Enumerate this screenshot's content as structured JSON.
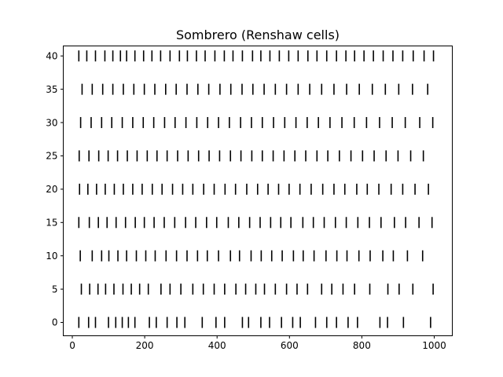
{
  "chart_data": {
    "type": "scatter",
    "marker": "vertical-line",
    "title": "Sombrero (Renshaw cells)",
    "xlabel": "",
    "ylabel": "",
    "xlim": [
      -25,
      1050
    ],
    "ylim": [
      -2,
      41.5
    ],
    "x_ticks": [
      0,
      200,
      400,
      600,
      800,
      1000
    ],
    "y_ticks": [
      0,
      5,
      10,
      15,
      20,
      25,
      30,
      35,
      40
    ],
    "grid": false,
    "legend": "none",
    "n_cells": 41,
    "time_range": [
      15,
      1000
    ],
    "series": [
      {
        "values": [
          [
            18,
            0
          ],
          [
            45,
            0
          ],
          [
            64,
            0
          ],
          [
            100,
            0
          ],
          [
            120,
            0
          ],
          [
            138,
            0
          ],
          [
            155,
            0
          ],
          [
            173,
            0
          ],
          [
            213,
            0
          ],
          [
            232,
            0
          ],
          [
            262,
            0
          ],
          [
            289,
            0
          ],
          [
            311,
            0
          ],
          [
            359,
            0
          ],
          [
            397,
            0
          ],
          [
            421,
            0
          ],
          [
            470,
            0
          ],
          [
            487,
            0
          ],
          [
            521,
            0
          ],
          [
            545,
            0
          ],
          [
            578,
            0
          ],
          [
            609,
            0
          ],
          [
            630,
            0
          ],
          [
            672,
            0
          ],
          [
            703,
            0
          ],
          [
            730,
            0
          ],
          [
            762,
            0
          ],
          [
            788,
            0
          ],
          [
            850,
            0
          ],
          [
            871,
            0
          ],
          [
            915,
            0
          ],
          [
            990,
            0
          ],
          [
            25,
            5
          ],
          [
            48,
            5
          ],
          [
            71,
            5
          ],
          [
            92,
            5
          ],
          [
            115,
            5
          ],
          [
            140,
            5
          ],
          [
            163,
            5
          ],
          [
            186,
            5
          ],
          [
            210,
            5
          ],
          [
            245,
            5
          ],
          [
            270,
            5
          ],
          [
            300,
            5
          ],
          [
            333,
            5
          ],
          [
            362,
            5
          ],
          [
            392,
            5
          ],
          [
            421,
            5
          ],
          [
            452,
            5
          ],
          [
            479,
            5
          ],
          [
            507,
            5
          ],
          [
            531,
            5
          ],
          [
            561,
            5
          ],
          [
            592,
            5
          ],
          [
            621,
            5
          ],
          [
            650,
            5
          ],
          [
            689,
            5
          ],
          [
            717,
            5
          ],
          [
            748,
            5
          ],
          [
            780,
            5
          ],
          [
            822,
            5
          ],
          [
            872,
            5
          ],
          [
            903,
            5
          ],
          [
            941,
            5
          ],
          [
            997,
            5
          ],
          [
            22,
            10
          ],
          [
            55,
            10
          ],
          [
            81,
            10
          ],
          [
            101,
            10
          ],
          [
            126,
            10
          ],
          [
            150,
            10
          ],
          [
            177,
            10
          ],
          [
            203,
            10
          ],
          [
            229,
            10
          ],
          [
            259,
            10
          ],
          [
            288,
            10
          ],
          [
            317,
            10
          ],
          [
            346,
            10
          ],
          [
            373,
            10
          ],
          [
            404,
            10
          ],
          [
            437,
            10
          ],
          [
            462,
            10
          ],
          [
            494,
            10
          ],
          [
            522,
            10
          ],
          [
            551,
            10
          ],
          [
            580,
            10
          ],
          [
            611,
            10
          ],
          [
            638,
            10
          ],
          [
            668,
            10
          ],
          [
            701,
            10
          ],
          [
            731,
            10
          ],
          [
            759,
            10
          ],
          [
            792,
            10
          ],
          [
            823,
            10
          ],
          [
            858,
            10
          ],
          [
            887,
            10
          ],
          [
            926,
            10
          ],
          [
            968,
            10
          ],
          [
            18,
            15
          ],
          [
            47,
            15
          ],
          [
            72,
            15
          ],
          [
            96,
            15
          ],
          [
            121,
            15
          ],
          [
            147,
            15
          ],
          [
            174,
            15
          ],
          [
            199,
            15
          ],
          [
            226,
            15
          ],
          [
            254,
            15
          ],
          [
            283,
            15
          ],
          [
            313,
            15
          ],
          [
            341,
            15
          ],
          [
            371,
            15
          ],
          [
            399,
            15
          ],
          [
            431,
            15
          ],
          [
            460,
            15
          ],
          [
            490,
            15
          ],
          [
            519,
            15
          ],
          [
            548,
            15
          ],
          [
            576,
            15
          ],
          [
            604,
            15
          ],
          [
            637,
            15
          ],
          [
            666,
            15
          ],
          [
            696,
            15
          ],
          [
            727,
            15
          ],
          [
            757,
            15
          ],
          [
            789,
            15
          ],
          [
            821,
            15
          ],
          [
            853,
            15
          ],
          [
            890,
            15
          ],
          [
            921,
            15
          ],
          [
            958,
            15
          ],
          [
            994,
            15
          ],
          [
            20,
            20
          ],
          [
            43,
            20
          ],
          [
            67,
            20
          ],
          [
            91,
            20
          ],
          [
            116,
            20
          ],
          [
            141,
            20
          ],
          [
            167,
            20
          ],
          [
            193,
            20
          ],
          [
            221,
            20
          ],
          [
            248,
            20
          ],
          [
            277,
            20
          ],
          [
            305,
            20
          ],
          [
            333,
            20
          ],
          [
            363,
            20
          ],
          [
            392,
            20
          ],
          [
            422,
            20
          ],
          [
            451,
            20
          ],
          [
            482,
            20
          ],
          [
            512,
            20
          ],
          [
            541,
            20
          ],
          [
            570,
            20
          ],
          [
            599,
            20
          ],
          [
            629,
            20
          ],
          [
            660,
            20
          ],
          [
            692,
            20
          ],
          [
            723,
            20
          ],
          [
            753,
            20
          ],
          [
            786,
            20
          ],
          [
            815,
            20
          ],
          [
            847,
            20
          ],
          [
            881,
            20
          ],
          [
            913,
            20
          ],
          [
            947,
            20
          ],
          [
            984,
            20
          ],
          [
            19,
            25
          ],
          [
            46,
            25
          ],
          [
            73,
            25
          ],
          [
            99,
            25
          ],
          [
            125,
            25
          ],
          [
            152,
            25
          ],
          [
            179,
            25
          ],
          [
            207,
            25
          ],
          [
            234,
            25
          ],
          [
            262,
            25
          ],
          [
            291,
            25
          ],
          [
            320,
            25
          ],
          [
            349,
            25
          ],
          [
            378,
            25
          ],
          [
            407,
            25
          ],
          [
            437,
            25
          ],
          [
            466,
            25
          ],
          [
            496,
            25
          ],
          [
            525,
            25
          ],
          [
            555,
            25
          ],
          [
            585,
            25
          ],
          [
            615,
            25
          ],
          [
            645,
            25
          ],
          [
            676,
            25
          ],
          [
            706,
            25
          ],
          [
            738,
            25
          ],
          [
            770,
            25
          ],
          [
            802,
            25
          ],
          [
            834,
            25
          ],
          [
            867,
            25
          ],
          [
            900,
            25
          ],
          [
            935,
            25
          ],
          [
            970,
            25
          ],
          [
            23,
            30
          ],
          [
            52,
            30
          ],
          [
            81,
            30
          ],
          [
            109,
            30
          ],
          [
            138,
            30
          ],
          [
            167,
            30
          ],
          [
            196,
            30
          ],
          [
            225,
            30
          ],
          [
            255,
            30
          ],
          [
            284,
            30
          ],
          [
            314,
            30
          ],
          [
            344,
            30
          ],
          [
            374,
            30
          ],
          [
            404,
            30
          ],
          [
            434,
            30
          ],
          [
            465,
            30
          ],
          [
            495,
            30
          ],
          [
            525,
            30
          ],
          [
            556,
            30
          ],
          [
            587,
            30
          ],
          [
            618,
            30
          ],
          [
            649,
            30
          ],
          [
            680,
            30
          ],
          [
            712,
            30
          ],
          [
            745,
            30
          ],
          [
            779,
            30
          ],
          [
            813,
            30
          ],
          [
            849,
            30
          ],
          [
            884,
            30
          ],
          [
            920,
            30
          ],
          [
            960,
            30
          ],
          [
            996,
            30
          ],
          [
            27,
            35
          ],
          [
            55,
            35
          ],
          [
            84,
            35
          ],
          [
            112,
            35
          ],
          [
            141,
            35
          ],
          [
            170,
            35
          ],
          [
            199,
            35
          ],
          [
            228,
            35
          ],
          [
            258,
            35
          ],
          [
            287,
            35
          ],
          [
            317,
            35
          ],
          [
            347,
            35
          ],
          [
            377,
            35
          ],
          [
            408,
            35
          ],
          [
            438,
            35
          ],
          [
            469,
            35
          ],
          [
            499,
            35
          ],
          [
            530,
            35
          ],
          [
            561,
            35
          ],
          [
            592,
            35
          ],
          [
            624,
            35
          ],
          [
            656,
            35
          ],
          [
            689,
            35
          ],
          [
            723,
            35
          ],
          [
            758,
            35
          ],
          [
            793,
            35
          ],
          [
            829,
            35
          ],
          [
            865,
            35
          ],
          [
            902,
            35
          ],
          [
            940,
            35
          ],
          [
            982,
            35
          ],
          [
            18,
            40
          ],
          [
            40,
            40
          ],
          [
            64,
            40
          ],
          [
            90,
            40
          ],
          [
            112,
            40
          ],
          [
            133,
            40
          ],
          [
            150,
            40
          ],
          [
            173,
            40
          ],
          [
            197,
            40
          ],
          [
            220,
            40
          ],
          [
            244,
            40
          ],
          [
            270,
            40
          ],
          [
            296,
            40
          ],
          [
            318,
            40
          ],
          [
            343,
            40
          ],
          [
            367,
            40
          ],
          [
            394,
            40
          ],
          [
            420,
            40
          ],
          [
            444,
            40
          ],
          [
            470,
            40
          ],
          [
            498,
            40
          ],
          [
            521,
            40
          ],
          [
            546,
            40
          ],
          [
            572,
            40
          ],
          [
            598,
            40
          ],
          [
            624,
            40
          ],
          [
            651,
            40
          ],
          [
            676,
            40
          ],
          [
            703,
            40
          ],
          [
            730,
            40
          ],
          [
            756,
            40
          ],
          [
            780,
            40
          ],
          [
            806,
            40
          ],
          [
            832,
            40
          ],
          [
            859,
            40
          ],
          [
            886,
            40
          ],
          [
            913,
            40
          ],
          [
            942,
            40
          ],
          [
            972,
            40
          ],
          [
            998,
            40
          ]
        ]
      }
    ]
  }
}
